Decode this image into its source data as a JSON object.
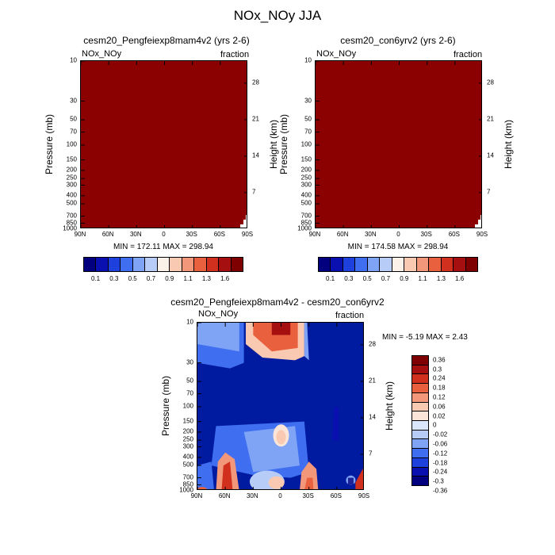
{
  "title": "NOx_NOy JJA",
  "panels": [
    {
      "title": "cesm20_Pengfeiexp8mam4v2 (yrs 2-6)",
      "left_label": "NOx_NOy",
      "right_label": "fraction",
      "minmax": "MIN = 172.11  MAX = 298.94",
      "ylabel": "Pressure (mb)",
      "y2label": "Height (km)"
    },
    {
      "title": "cesm20_con6yrv2 (yrs 2-6)",
      "left_label": "NOx_NOy",
      "right_label": "fraction",
      "minmax": "MIN = 174.58  MAX = 298.94",
      "ylabel": "Pressure (mb)",
      "y2label": "Height (km)"
    },
    {
      "title": "cesm20_Pengfeiexp8mam4v2 - cesm20_con6yrv2",
      "left_label": "NOx_NOy",
      "right_label": "fraction",
      "minmax": "MIN =  -5.19  MAX =   2.43",
      "ylabel": "Pressure (mb)",
      "y2label": "Height (km)"
    }
  ],
  "axes": {
    "x_ticks": [
      "90N",
      "60N",
      "30N",
      "0",
      "30S",
      "60S",
      "90S"
    ],
    "pressure_ticks": [
      {
        "p": 10,
        "label": "10"
      },
      {
        "p": 30,
        "label": "30"
      },
      {
        "p": 50,
        "label": "50"
      },
      {
        "p": 70,
        "label": "70"
      },
      {
        "p": 100,
        "label": "100"
      },
      {
        "p": 150,
        "label": "150"
      },
      {
        "p": 200,
        "label": "200"
      },
      {
        "p": 250,
        "label": "250"
      },
      {
        "p": 300,
        "label": "300"
      },
      {
        "p": 400,
        "label": "400"
      },
      {
        "p": 500,
        "label": "500"
      },
      {
        "p": 700,
        "label": "700"
      },
      {
        "p": 850,
        "label": "850"
      },
      {
        "p": 1000,
        "label": "1000"
      }
    ],
    "height_ticks": [
      "28",
      "21",
      "14",
      "7"
    ]
  },
  "colors": {
    "abs_bar": [
      "#02007f",
      "#0a10b0",
      "#1e40dc",
      "#3f6ff0",
      "#7fa3f5",
      "#b7cdf8",
      "#fcf1e8",
      "#f9c9b1",
      "#f3977a",
      "#e9603f",
      "#d1301e",
      "#a50f0f",
      "#7f0000"
    ],
    "diff_bar": [
      "#7f0000",
      "#a50f0f",
      "#d1301e",
      "#e9603f",
      "#f3977a",
      "#f9c9b1",
      "#fbe4d8",
      "#d9e6fb",
      "#b7cdf8",
      "#7fa3f5",
      "#3f6ff0",
      "#1e40dc",
      "#0a10b0",
      "#02007f"
    ],
    "saturated": "#8b0000",
    "diff_background": "#001aa0"
  },
  "abs_colorbar_labels": [
    "0.1",
    "0.3",
    "0.5",
    "0.7",
    "0.9",
    "1.1",
    "1.3",
    "1.6"
  ],
  "diff_colorbar_labels": [
    "0.36",
    "0.3",
    "0.24",
    "0.18",
    "0.12",
    "0.06",
    "0.02",
    "0",
    "-0.02",
    "-0.06",
    "-0.12",
    "-0.18",
    "-0.24",
    "-0.3",
    "-0.36"
  ],
  "chart_data": [
    {
      "type": "heatmap",
      "title": "cesm20_Pengfeiexp8mam4v2 (yrs 2-6)",
      "xlabel": "",
      "ylabel": "Pressure (mb)",
      "y2label": "Height (km)",
      "x_range": [
        "90N",
        "90S"
      ],
      "y_range_mb": [
        1000,
        10
      ],
      "y_scale": "log",
      "levels": [
        0.1,
        0.2,
        0.3,
        0.4,
        0.5,
        0.6,
        0.7,
        0.8,
        0.9,
        1.0,
        1.1,
        1.2,
        1.3,
        1.6
      ],
      "field_summary": "entire domain above top contour level (1.6)",
      "min": 172.11,
      "max": 298.94
    },
    {
      "type": "heatmap",
      "title": "cesm20_con6yrv2 (yrs 2-6)",
      "xlabel": "",
      "ylabel": "Pressure (mb)",
      "y2label": "Height (km)",
      "x_range": [
        "90N",
        "90S"
      ],
      "y_range_mb": [
        1000,
        10
      ],
      "y_scale": "log",
      "levels": [
        0.1,
        0.2,
        0.3,
        0.4,
        0.5,
        0.6,
        0.7,
        0.8,
        0.9,
        1.0,
        1.1,
        1.2,
        1.3,
        1.6
      ],
      "field_summary": "entire domain above top contour level (1.6)",
      "min": 174.58,
      "max": 298.94
    },
    {
      "type": "heatmap",
      "title": "cesm20_Pengfeiexp8mam4v2 - cesm20_con6yrv2",
      "xlabel": "",
      "ylabel": "Pressure (mb)",
      "y2label": "Height (km)",
      "x_range": [
        "90N",
        "90S"
      ],
      "y_range_mb": [
        1000,
        10
      ],
      "y_scale": "log",
      "levels": [
        -0.36,
        -0.3,
        -0.24,
        -0.18,
        -0.12,
        -0.06,
        -0.02,
        0,
        0.02,
        0.06,
        0.12,
        0.18,
        0.24,
        0.3,
        0.36
      ],
      "features": [
        {
          "region": "upper stratosphere 35N-25S, 10-25 mb",
          "sign": "positive",
          "peak": 0.36
        },
        {
          "region": "lower troposphere 60N-45N",
          "sign": "positive",
          "peak": 0.3
        },
        {
          "region": "mid troposphere near 0, 200-300 mb",
          "sign": "positive",
          "peak": 0.06
        },
        {
          "region": "lower troposphere 30S",
          "sign": "positive",
          "peak": 0.2
        },
        {
          "region": "surface 85S-90S",
          "sign": "positive",
          "peak": 0.36
        },
        {
          "region": "background",
          "sign": "negative",
          "peak": -0.36
        }
      ],
      "min": -5.19,
      "max": 2.43
    }
  ]
}
